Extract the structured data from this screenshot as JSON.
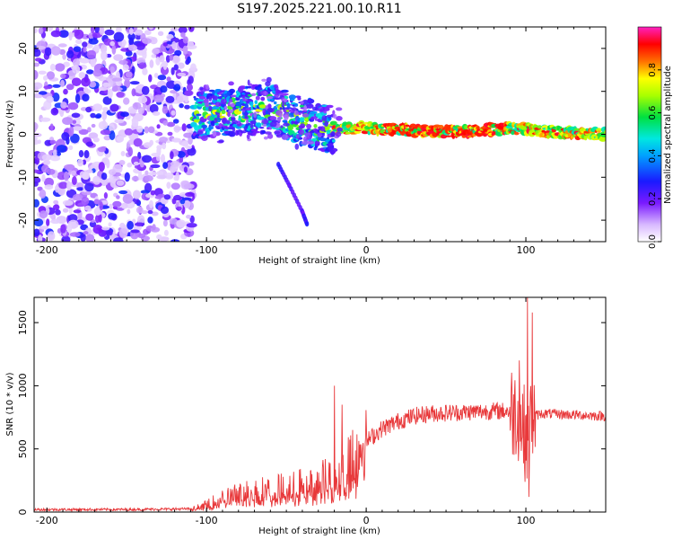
{
  "title": "S197.2025.221.00.10.R11",
  "colors": {
    "snr_line": "#e8383a",
    "axis": "#000000",
    "background": "#ffffff"
  },
  "chart_data": [
    {
      "type": "heatmap",
      "name": "spectrogram",
      "xlabel": "Height of straight line (km)",
      "ylabel": "Frequency (Hz)",
      "xlim": [
        -208,
        150
      ],
      "ylim": [
        -25,
        25
      ],
      "xticks": [
        -200,
        -100,
        0,
        100
      ],
      "yticks": [
        -20,
        -10,
        0,
        10,
        20
      ],
      "x_tick_labels": [
        "-200",
        "-100",
        "0",
        "100"
      ],
      "y_tick_labels": [
        "-20",
        "-10",
        "0",
        "10",
        "20"
      ],
      "colorbar": {
        "label": "Normalized spectral amplitude",
        "range": [
          0,
          1
        ],
        "ticks": [
          0.0,
          0.2,
          0.4,
          0.6,
          0.8
        ],
        "tick_labels": [
          "0.0",
          "0.2",
          "0.4",
          "0.6",
          "0.8"
        ],
        "colormap": "rainbow (white-violet-blue-cyan-green-yellow-red-magenta)"
      },
      "features": [
        {
          "name": "noise region",
          "x_range": [
            -208,
            -108
          ],
          "y_range": [
            -25,
            25
          ],
          "amplitude": 0.1
        },
        {
          "name": "signal band",
          "points": [
            [
              -105,
              4.5
            ],
            [
              -80,
              5.5
            ],
            [
              -60,
              6
            ],
            [
              -40,
              3
            ],
            [
              -20,
              1
            ],
            [
              0,
              1.5
            ],
            [
              20,
              1
            ],
            [
              60,
              0.5
            ],
            [
              90,
              1.5
            ],
            [
              120,
              0.5
            ],
            [
              150,
              0
            ]
          ],
          "amplitude": 0.9
        },
        {
          "name": "descending branch",
          "points": [
            [
              -55,
              -7
            ],
            [
              -48,
              -12
            ],
            [
              -40,
              -18
            ],
            [
              -37,
              -21
            ]
          ],
          "amplitude": 0.25
        }
      ]
    },
    {
      "type": "line",
      "name": "snr",
      "xlabel": "Height of straight line (km)",
      "ylabel": "SNR (10 * v/v)",
      "xlim": [
        -208,
        150
      ],
      "ylim": [
        0,
        1700
      ],
      "xticks": [
        -200,
        -100,
        0,
        100
      ],
      "yticks": [
        0,
        500,
        1000,
        1500
      ],
      "x_tick_labels": [
        "-200",
        "-100",
        "0",
        "100"
      ],
      "y_tick_labels": [
        "0",
        "500",
        "1000",
        "1500"
      ],
      "envelope": {
        "x": [
          -208,
          -150,
          -110,
          -100,
          -90,
          -70,
          -50,
          -35,
          -25,
          -15,
          -10,
          0,
          10,
          20,
          30,
          40,
          60,
          80,
          90,
          95,
          100,
          105,
          110,
          130,
          150
        ],
        "y": [
          20,
          20,
          25,
          60,
          120,
          180,
          200,
          240,
          280,
          320,
          420,
          560,
          660,
          720,
          760,
          780,
          790,
          800,
          800,
          790,
          600,
          760,
          780,
          770,
          760
        ]
      },
      "spikes": [
        {
          "x": -20,
          "y": 1000
        },
        {
          "x": -15,
          "y": 850
        },
        {
          "x": 96,
          "y": 1200
        },
        {
          "x": 101,
          "y": 1700
        },
        {
          "x": 104,
          "y": 1580
        },
        {
          "x": 102,
          "y": 120
        }
      ]
    }
  ]
}
